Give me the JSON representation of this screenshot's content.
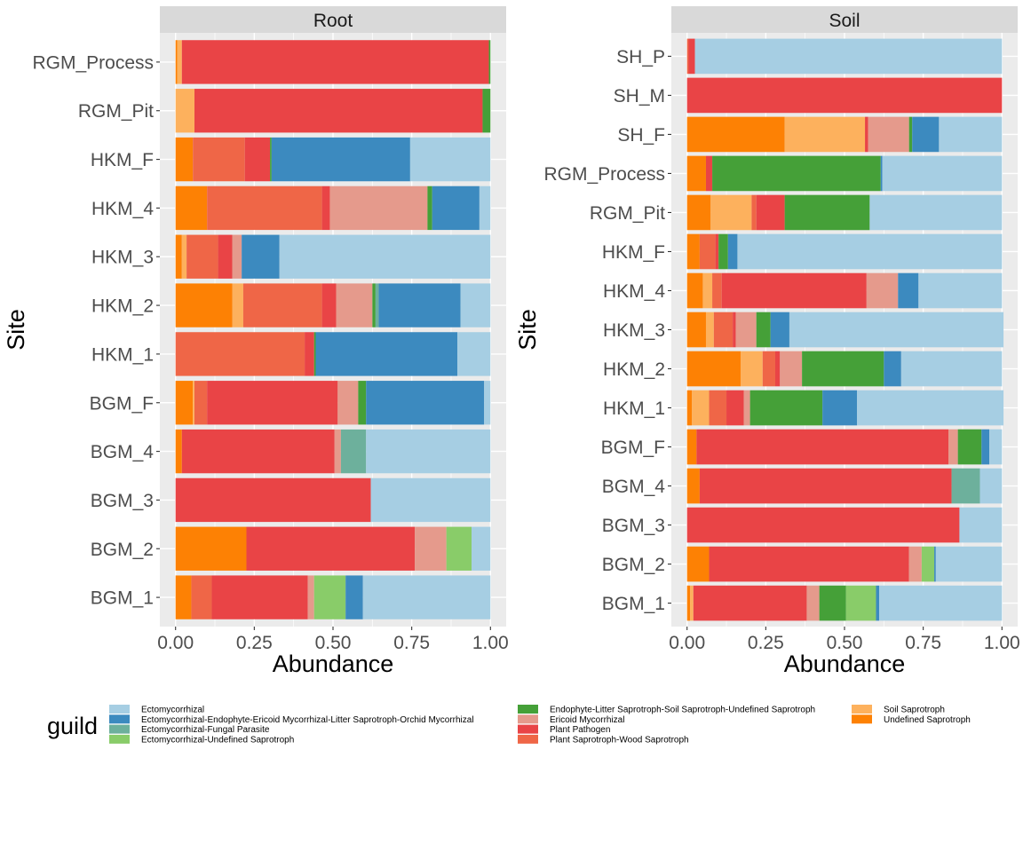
{
  "legend": {
    "title": "guild",
    "items": [
      {
        "name": "Ectomycorrhizal",
        "color": "#A6CEE3"
      },
      {
        "name": "Ectomycorrhizal-Endophyte-Ericoid Mycorrhizal-Litter Saprotroph-Orchid Mycorrhizal",
        "color": "#3C8ABF"
      },
      {
        "name": "Ectomycorrhizal-Fungal Parasite",
        "color": "#6DB09C"
      },
      {
        "name": "Ectomycorrhizal-Undefined Saprotroph",
        "color": "#89CC69"
      },
      {
        "name": "Endophyte-Litter Saprotroph-Soil Saprotroph-Undefined Saprotroph",
        "color": "#45A038"
      },
      {
        "name": "Ericoid Mycorrhizal",
        "color": "#E59A8C"
      },
      {
        "name": "Plant Pathogen",
        "color": "#E94446"
      },
      {
        "name": "Plant Saprotroph-Wood Saprotroph",
        "color": "#EF6647"
      },
      {
        "name": "Soil Saprotroph",
        "color": "#FDB15D"
      },
      {
        "name": "Undefined Saprotroph",
        "color": "#FD8104"
      }
    ]
  },
  "chart_data": [
    {
      "type": "bar",
      "orientation": "horizontal",
      "stacked": true,
      "panel": "Root",
      "xlabel": "Abundance",
      "ylabel": "Site",
      "xlim": [
        0,
        1
      ],
      "xticks": [
        "0.00",
        "0.25",
        "0.50",
        "0.75",
        "1.00"
      ],
      "grid": true,
      "legend_position": "bottom",
      "categories": [
        "BGM_1",
        "BGM_2",
        "BGM_3",
        "BGM_4",
        "BGM_F",
        "HKM_1",
        "HKM_2",
        "HKM_3",
        "HKM_4",
        "HKM_F",
        "RGM_Pit",
        "RGM_Process"
      ],
      "series": [
        {
          "name": "Undefined Saprotroph",
          "values": [
            0.05,
            0.225,
            0.0,
            0.02,
            0.055,
            0.0,
            0.18,
            0.02,
            0.1,
            0.055,
            0.0,
            0.005
          ]
        },
        {
          "name": "Soil Saprotroph",
          "values": [
            0.0,
            0.0,
            0.0,
            0.0,
            0.005,
            0.0,
            0.035,
            0.015,
            0.0,
            0.0,
            0.06,
            0.015
          ]
        },
        {
          "name": "Plant Saprotroph-Wood Saprotroph",
          "values": [
            0.065,
            0.0,
            0.0,
            0.0,
            0.04,
            0.41,
            0.25,
            0.1,
            0.365,
            0.165,
            0.0,
            0.0
          ]
        },
        {
          "name": "Plant Pathogen",
          "values": [
            0.305,
            0.535,
            0.62,
            0.485,
            0.415,
            0.03,
            0.045,
            0.045,
            0.025,
            0.08,
            0.915,
            0.975
          ]
        },
        {
          "name": "Ericoid Mycorrhizal",
          "values": [
            0.02,
            0.1,
            0.0,
            0.02,
            0.065,
            0.0,
            0.115,
            0.03,
            0.31,
            0.0,
            0.0,
            0.0
          ]
        },
        {
          "name": "Endophyte-Litter Saprotroph-Soil Saprotroph-Undefined Saprotroph",
          "values": [
            0.0,
            0.0,
            0.0,
            0.0,
            0.025,
            0.005,
            0.01,
            0.0,
            0.015,
            0.005,
            0.025,
            0.005
          ]
        },
        {
          "name": "Ectomycorrhizal-Undefined Saprotroph",
          "values": [
            0.1,
            0.08,
            0.0,
            0.0,
            0.0,
            0.0,
            0.0,
            0.0,
            0.0,
            0.0,
            0.0,
            0.0
          ]
        },
        {
          "name": "Ectomycorrhizal-Fungal Parasite",
          "values": [
            0.0,
            0.0,
            0.0,
            0.08,
            0.0,
            0.0,
            0.01,
            0.0,
            0.0,
            0.0,
            0.0,
            0.0
          ]
        },
        {
          "name": "Ectomycorrhizal-Endophyte-Ericoid Mycorrhizal-Litter Saprotroph-Orchid Mycorrhizal",
          "values": [
            0.055,
            0.0,
            0.0,
            0.0,
            0.375,
            0.45,
            0.26,
            0.12,
            0.15,
            0.44,
            0.0,
            0.0
          ]
        },
        {
          "name": "Ectomycorrhizal",
          "values": [
            0.405,
            0.06,
            0.38,
            0.395,
            0.02,
            0.105,
            0.095,
            0.67,
            0.035,
            0.255,
            0.0,
            0.0
          ]
        }
      ]
    },
    {
      "type": "bar",
      "orientation": "horizontal",
      "stacked": true,
      "panel": "Soil",
      "xlabel": "Abundance",
      "ylabel": "Site",
      "xlim": [
        0,
        1
      ],
      "xticks": [
        "0.00",
        "0.25",
        "0.50",
        "0.75",
        "1.00"
      ],
      "grid": true,
      "legend_position": "bottom",
      "categories": [
        "BGM_1",
        "BGM_2",
        "BGM_3",
        "BGM_4",
        "BGM_F",
        "HKM_1",
        "HKM_2",
        "HKM_3",
        "HKM_4",
        "HKM_F",
        "RGM_Pit",
        "RGM_Process",
        "SH_F",
        "SH_M",
        "SH_P"
      ],
      "series": [
        {
          "name": "Undefined Saprotroph",
          "values": [
            0.01,
            0.07,
            0.0,
            0.04,
            0.03,
            0.015,
            0.17,
            0.06,
            0.05,
            0.04,
            0.075,
            0.06,
            0.31,
            0.0,
            0.0
          ]
        },
        {
          "name": "Soil Saprotroph",
          "values": [
            0.01,
            0.0,
            0.0,
            0.0,
            0.0,
            0.055,
            0.07,
            0.025,
            0.03,
            0.0,
            0.13,
            0.0,
            0.255,
            0.0,
            0.0
          ]
        },
        {
          "name": "Plant Saprotroph-Wood Saprotroph",
          "values": [
            0.0,
            0.0,
            0.0,
            0.0,
            0.0,
            0.055,
            0.04,
            0.06,
            0.03,
            0.05,
            0.015,
            0.0,
            0.0,
            0.0,
            0.005
          ]
        },
        {
          "name": "Plant Pathogen",
          "values": [
            0.36,
            0.635,
            0.865,
            0.8,
            0.8,
            0.055,
            0.015,
            0.01,
            0.46,
            0.01,
            0.09,
            0.02,
            0.01,
            1.0,
            0.02
          ]
        },
        {
          "name": "Ericoid Mycorrhizal",
          "values": [
            0.04,
            0.04,
            0.0,
            0.0,
            0.03,
            0.02,
            0.07,
            0.065,
            0.1,
            0.0,
            0.0,
            0.0,
            0.13,
            0.0,
            0.0
          ]
        },
        {
          "name": "Endophyte-Litter Saprotroph-Soil Saprotroph-Undefined Saprotroph",
          "values": [
            0.085,
            0.0,
            0.0,
            0.0,
            0.075,
            0.23,
            0.26,
            0.045,
            0.0,
            0.03,
            0.27,
            0.535,
            0.01,
            0.0,
            0.0
          ]
        },
        {
          "name": "Ectomycorrhizal-Undefined Saprotroph",
          "values": [
            0.095,
            0.04,
            0.0,
            0.0,
            0.0,
            0.0,
            0.0,
            0.0,
            0.0,
            0.0,
            0.0,
            0.0,
            0.0,
            0.0,
            0.0
          ]
        },
        {
          "name": "Ectomycorrhizal-Fungal Parasite",
          "values": [
            0.0,
            0.0,
            0.0,
            0.09,
            0.0,
            0.0,
            0.0,
            0.0,
            0.0,
            0.0,
            0.0,
            0.0,
            0.0,
            0.0,
            0.0
          ]
        },
        {
          "name": "Ectomycorrhizal-Endophyte-Ericoid Mycorrhizal-Litter Saprotroph-Orchid Mycorrhizal",
          "values": [
            0.01,
            0.005,
            0.0,
            0.0,
            0.025,
            0.11,
            0.055,
            0.06,
            0.065,
            0.03,
            0.0,
            0.005,
            0.085,
            0.0,
            0.0
          ]
        },
        {
          "name": "Ectomycorrhizal",
          "values": [
            0.39,
            0.21,
            0.135,
            0.07,
            0.04,
            0.465,
            0.32,
            0.68,
            0.265,
            0.84,
            0.42,
            0.38,
            0.2,
            0.0,
            0.975
          ]
        }
      ]
    }
  ]
}
